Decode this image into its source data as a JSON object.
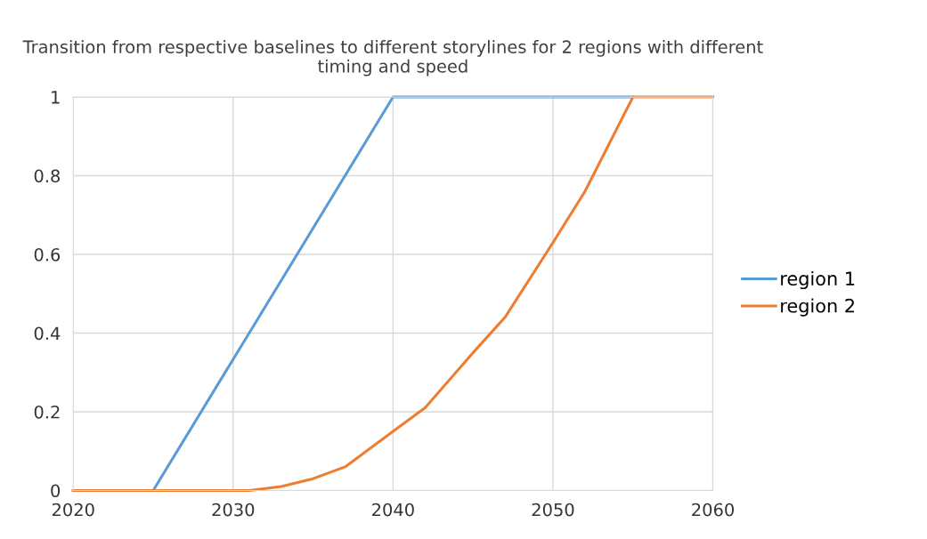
{
  "chart_data": {
    "type": "line",
    "title": "Transition from respective baselines to different storylines for 2 regions with different timing and speed",
    "series": [
      {
        "name": "region 1",
        "color": "#5b9bd5",
        "x": [
          2020,
          2025,
          2040,
          2055
        ],
        "values": [
          0,
          0,
          1,
          1
        ]
      },
      {
        "name": "region 2",
        "color": "#ed7d31",
        "x": [
          2020,
          2031,
          2033,
          2035,
          2037,
          2040,
          2042,
          2045,
          2047,
          2050,
          2052,
          2055,
          2060
        ],
        "values": [
          0,
          0,
          0.01,
          0.03,
          0.06,
          0.15,
          0.21,
          0.35,
          0.44,
          0.63,
          0.76,
          1,
          1
        ]
      }
    ],
    "xlim": [
      2020,
      2060
    ],
    "xticks": [
      2020,
      2030,
      2040,
      2050,
      2060
    ],
    "ylim": [
      0,
      1
    ],
    "yticks": [
      0,
      0.2,
      0.4,
      0.6,
      0.8,
      1
    ],
    "grid": true,
    "legend": "right",
    "marker": "none",
    "line_style": "solid"
  }
}
